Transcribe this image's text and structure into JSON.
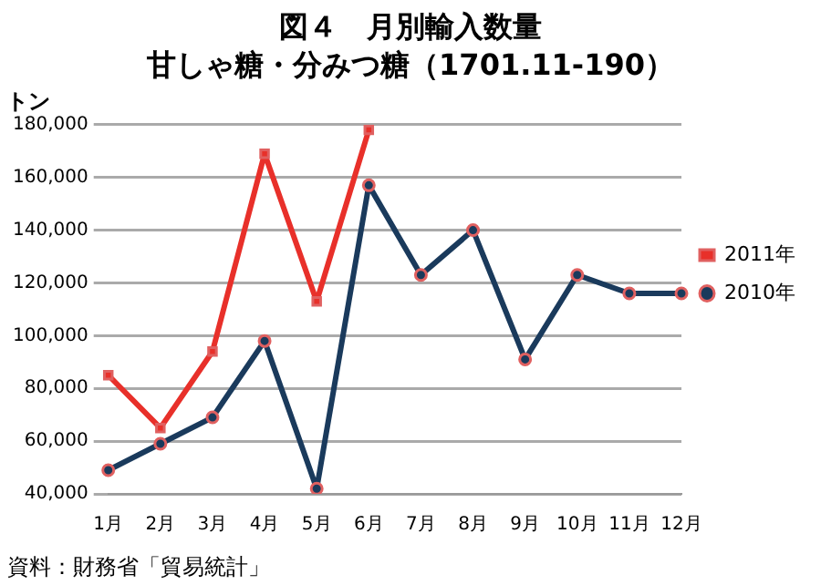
{
  "chart_data": {
    "type": "line",
    "title": "図４　月別輸入数量",
    "subtitle": "甘しゃ糖・分みつ糖（1701.11-190）",
    "ylabel": "トン",
    "annotations": [
      "資料：財務省「貿易統計」"
    ],
    "categories": [
      "1月",
      "2月",
      "3月",
      "4月",
      "5月",
      "6月",
      "7月",
      "8月",
      "9月",
      "10月",
      "11月",
      "12月"
    ],
    "series": [
      {
        "name": "2011年",
        "color": "#e8302a",
        "marker": "square",
        "values": [
          85000,
          65000,
          94000,
          169000,
          113000,
          178000,
          null,
          null,
          null,
          null,
          null,
          null
        ]
      },
      {
        "name": "2010年",
        "color": "#1a3a5c",
        "marker": "circle",
        "values": [
          49000,
          59000,
          69000,
          98000,
          42000,
          157000,
          123000,
          140000,
          91000,
          123000,
          116000,
          116000
        ]
      }
    ],
    "ylim": [
      40000,
      180000
    ],
    "yticks": [
      {
        "value": 40000,
        "label": "40,000"
      },
      {
        "value": 60000,
        "label": "60,000"
      },
      {
        "value": 80000,
        "label": "80,000"
      },
      {
        "value": 100000,
        "label": "100,000"
      },
      {
        "value": 120000,
        "label": "120,000"
      },
      {
        "value": 140000,
        "label": "140,000"
      },
      {
        "value": 160000,
        "label": "160,000"
      },
      {
        "value": 180000,
        "label": "180,000"
      }
    ],
    "grid": "y",
    "legend": "right"
  }
}
